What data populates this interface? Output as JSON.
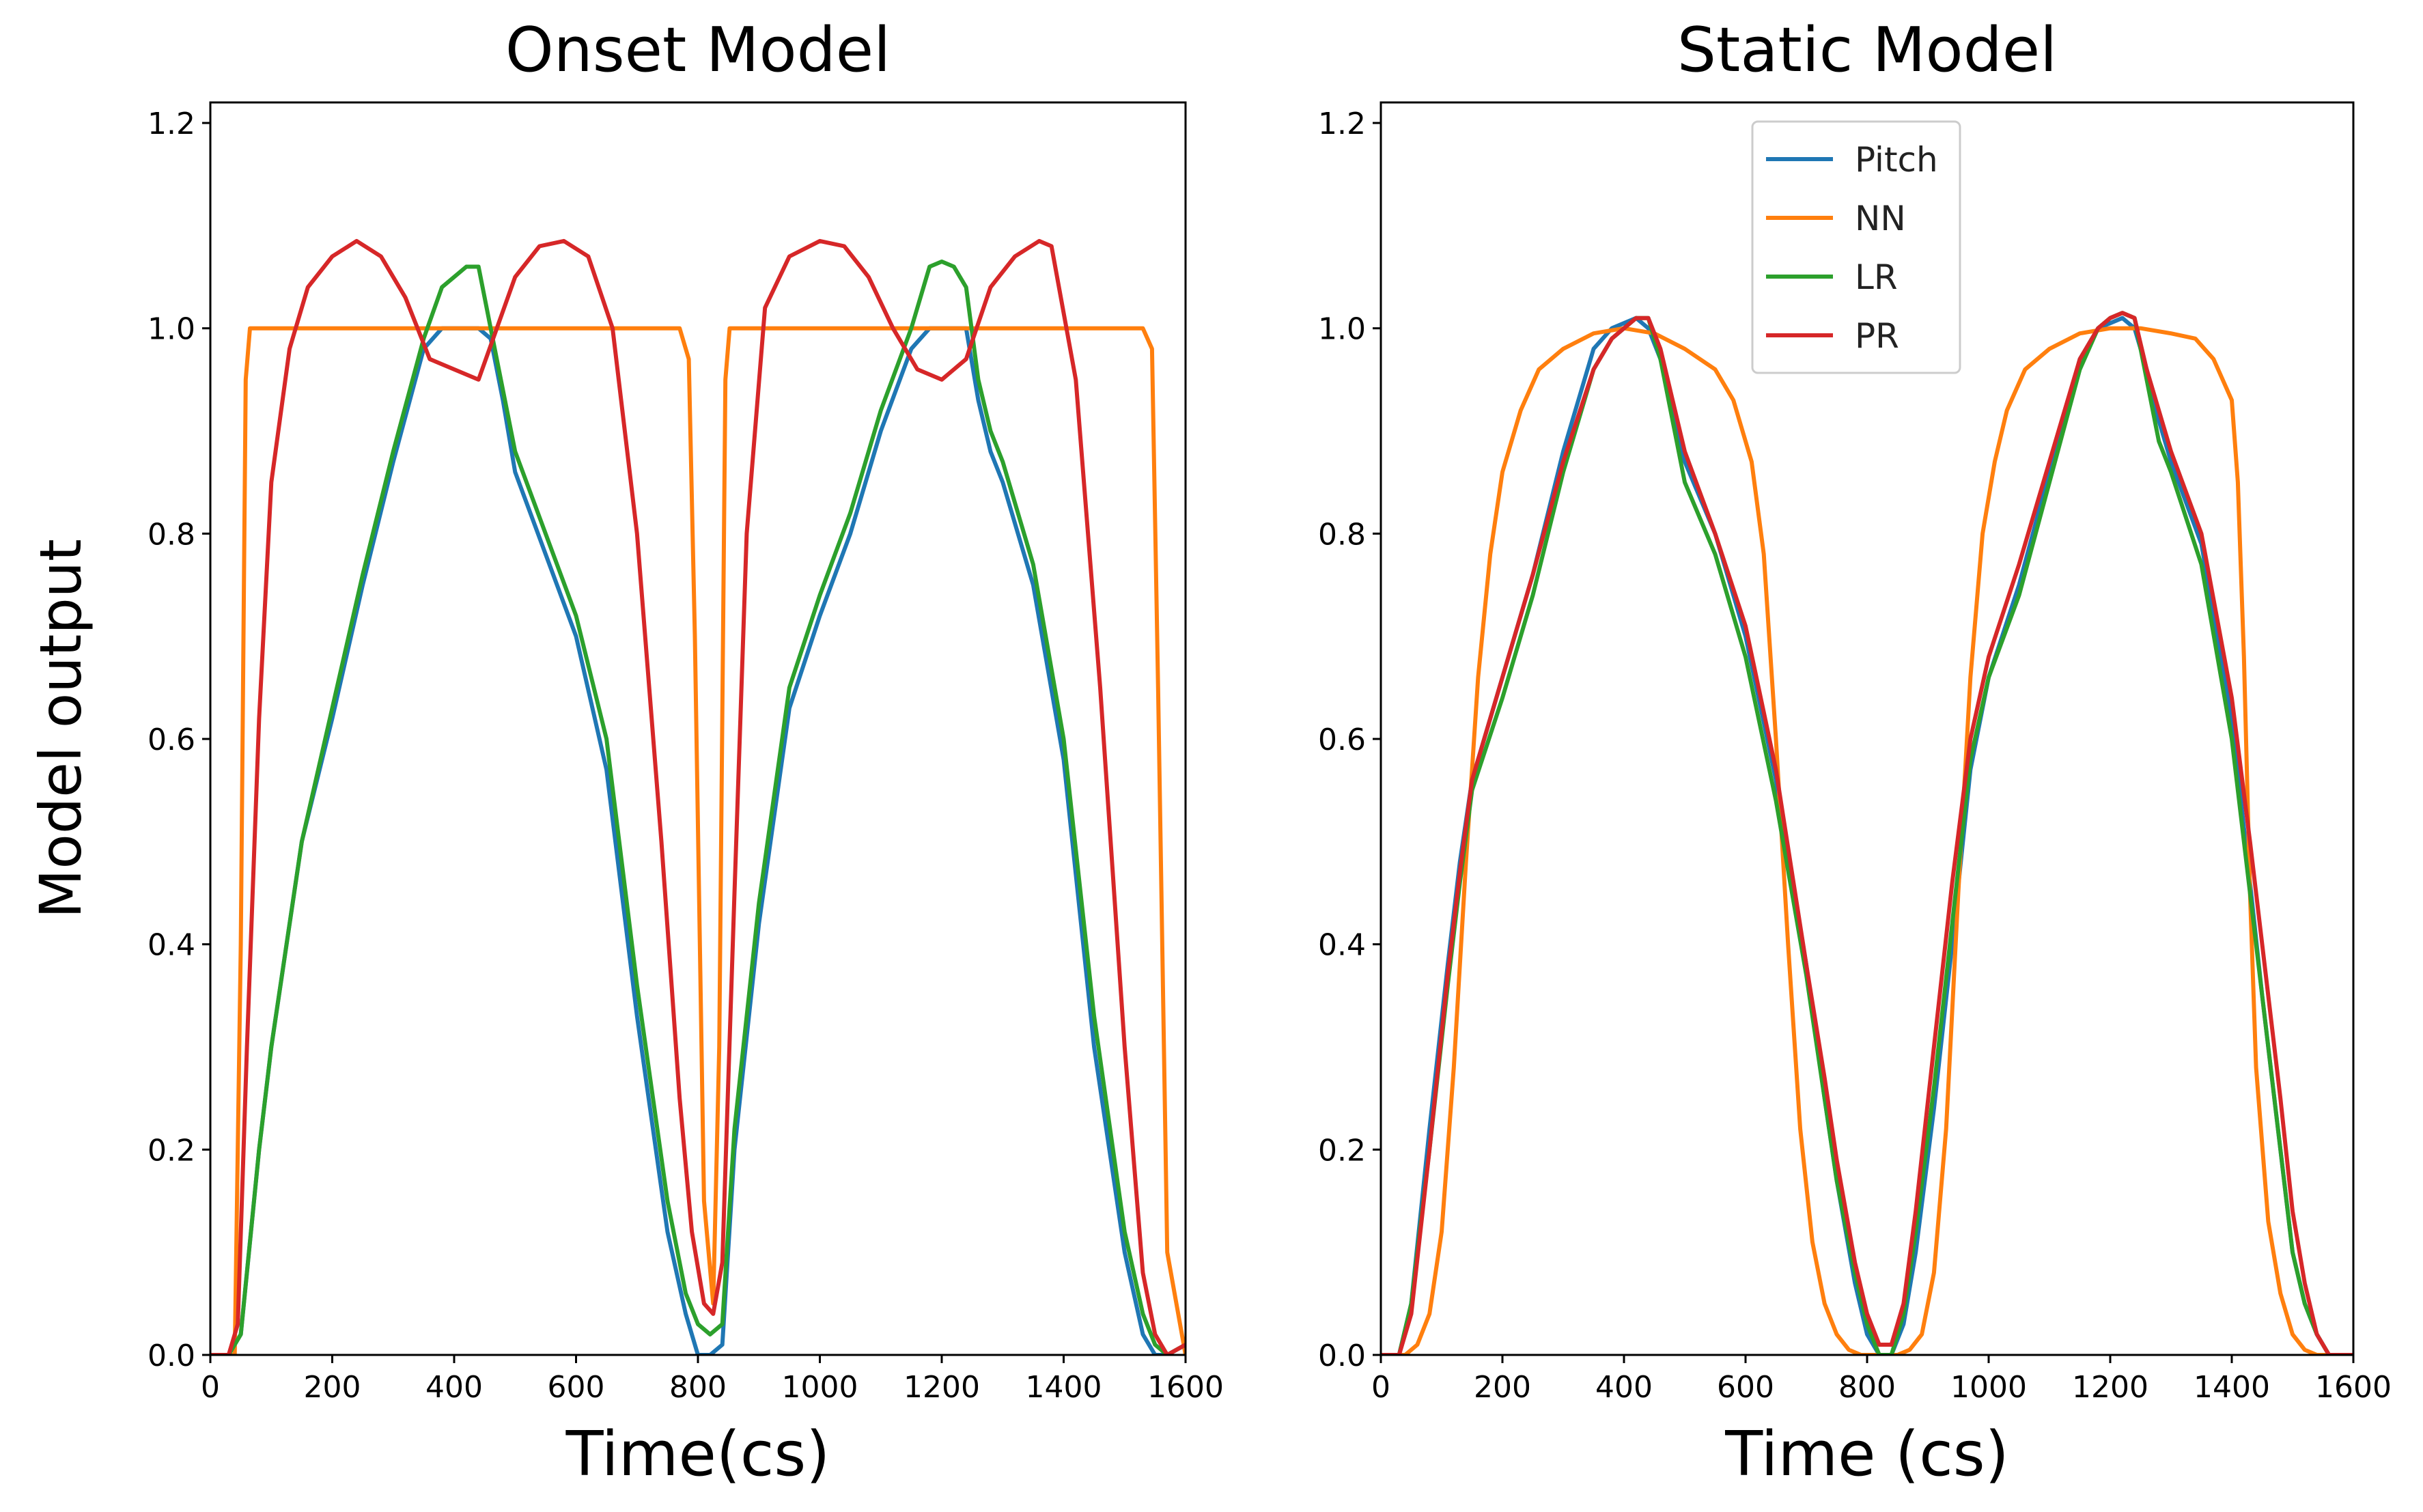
{
  "chart_data": [
    {
      "type": "line",
      "title": "Onset Model",
      "xlabel": "Time(cs)",
      "ylabel": "Model output",
      "xlim": [
        0,
        1600
      ],
      "ylim": [
        0,
        1.22
      ],
      "xticks": [
        0,
        200,
        400,
        600,
        800,
        1000,
        1200,
        1400,
        1600
      ],
      "xtick_labels": [
        "0",
        "200",
        "400",
        "600",
        "800",
        "1000",
        "1200",
        "1400",
        "1600"
      ],
      "yticks": [
        0.0,
        0.2,
        0.4,
        0.6,
        0.8,
        1.0,
        1.2
      ],
      "ytick_labels": [
        "0.0",
        "0.2",
        "0.4",
        "0.6",
        "0.8",
        "1.0",
        "1.2"
      ],
      "series": [
        {
          "name": "Pitch",
          "color": "#1f77b4",
          "x": [
            0,
            30,
            50,
            80,
            100,
            150,
            200,
            250,
            300,
            350,
            380,
            400,
            420,
            440,
            460,
            480,
            500,
            550,
            600,
            650,
            700,
            750,
            780,
            800,
            820,
            840,
            860,
            900,
            950,
            1000,
            1050,
            1100,
            1150,
            1180,
            1200,
            1220,
            1240,
            1260,
            1280,
            1300,
            1350,
            1400,
            1450,
            1500,
            1530,
            1550,
            1570,
            1600
          ],
          "y": [
            0,
            0,
            0.02,
            0.2,
            0.3,
            0.5,
            0.62,
            0.75,
            0.87,
            0.98,
            1.0,
            1.0,
            1.0,
            1.0,
            0.99,
            0.93,
            0.86,
            0.78,
            0.7,
            0.57,
            0.33,
            0.12,
            0.04,
            0.0,
            0.0,
            0.01,
            0.2,
            0.42,
            0.63,
            0.72,
            0.8,
            0.9,
            0.98,
            1.0,
            1.0,
            1.0,
            1.0,
            0.93,
            0.88,
            0.85,
            0.75,
            0.58,
            0.3,
            0.1,
            0.02,
            0.0,
            0.0,
            0.01
          ]
        },
        {
          "name": "NN",
          "color": "#ff7f0e",
          "x": [
            0,
            40,
            50,
            58,
            65,
            100,
            200,
            400,
            600,
            700,
            770,
            785,
            795,
            810,
            825,
            835,
            845,
            852,
            870,
            1000,
            1200,
            1400,
            1500,
            1530,
            1545,
            1555,
            1570,
            1600
          ],
          "y": [
            0,
            0,
            0.4,
            0.95,
            1.0,
            1.0,
            1.0,
            1.0,
            1.0,
            1.0,
            1.0,
            0.97,
            0.7,
            0.15,
            0.05,
            0.3,
            0.95,
            1.0,
            1.0,
            1.0,
            1.0,
            1.0,
            1.0,
            1.0,
            0.98,
            0.65,
            0.1,
            0.0
          ]
        },
        {
          "name": "LR",
          "color": "#2ca02c",
          "x": [
            0,
            30,
            50,
            80,
            100,
            150,
            200,
            250,
            300,
            350,
            380,
            400,
            420,
            440,
            460,
            480,
            500,
            550,
            600,
            650,
            700,
            750,
            780,
            800,
            820,
            840,
            860,
            900,
            950,
            1000,
            1050,
            1100,
            1150,
            1180,
            1200,
            1220,
            1240,
            1260,
            1280,
            1300,
            1350,
            1400,
            1450,
            1500,
            1530,
            1550,
            1570,
            1600
          ],
          "y": [
            0,
            0,
            0.02,
            0.2,
            0.3,
            0.5,
            0.63,
            0.76,
            0.88,
            0.99,
            1.04,
            1.05,
            1.06,
            1.06,
            1.0,
            0.94,
            0.88,
            0.8,
            0.72,
            0.6,
            0.36,
            0.15,
            0.06,
            0.03,
            0.02,
            0.03,
            0.22,
            0.44,
            0.65,
            0.74,
            0.82,
            0.92,
            1.0,
            1.06,
            1.065,
            1.06,
            1.04,
            0.95,
            0.9,
            0.87,
            0.77,
            0.6,
            0.33,
            0.12,
            0.04,
            0.01,
            0.0,
            0.01
          ]
        },
        {
          "name": "PR",
          "color": "#d62728",
          "x": [
            0,
            30,
            45,
            60,
            80,
            100,
            130,
            160,
            200,
            240,
            280,
            320,
            360,
            400,
            440,
            470,
            500,
            540,
            580,
            620,
            660,
            700,
            740,
            770,
            790,
            810,
            825,
            840,
            860,
            880,
            910,
            950,
            1000,
            1040,
            1080,
            1120,
            1160,
            1200,
            1240,
            1280,
            1320,
            1360,
            1380,
            1420,
            1460,
            1500,
            1530,
            1550,
            1570,
            1600
          ],
          "y": [
            0,
            0,
            0.03,
            0.3,
            0.62,
            0.85,
            0.98,
            1.04,
            1.07,
            1.085,
            1.07,
            1.03,
            0.97,
            0.96,
            0.95,
            1.0,
            1.05,
            1.08,
            1.085,
            1.07,
            1.0,
            0.8,
            0.5,
            0.25,
            0.12,
            0.05,
            0.04,
            0.09,
            0.45,
            0.8,
            1.02,
            1.07,
            1.085,
            1.08,
            1.05,
            1.0,
            0.96,
            0.95,
            0.97,
            1.04,
            1.07,
            1.085,
            1.08,
            0.95,
            0.65,
            0.3,
            0.08,
            0.02,
            0.0,
            0.01
          ]
        }
      ]
    },
    {
      "type": "line",
      "title": "Static Model",
      "xlabel": "Time (cs)",
      "ylabel": "",
      "xlim": [
        0,
        1600
      ],
      "ylim": [
        0,
        1.22
      ],
      "xticks": [
        0,
        200,
        400,
        600,
        800,
        1000,
        1200,
        1400,
        1600
      ],
      "xtick_labels": [
        "0",
        "200",
        "400",
        "600",
        "800",
        "1000",
        "1200",
        "1400",
        "1600"
      ],
      "yticks": [
        0.0,
        0.2,
        0.4,
        0.6,
        0.8,
        1.0,
        1.2
      ],
      "ytick_labels": [
        "0.0",
        "0.2",
        "0.4",
        "0.6",
        "0.8",
        "1.0",
        "1.2"
      ],
      "legend": "top-center",
      "series": [
        {
          "name": "Pitch",
          "color": "#1f77b4",
          "x": [
            0,
            30,
            50,
            80,
            110,
            130,
            150,
            200,
            250,
            300,
            350,
            380,
            400,
            420,
            440,
            460,
            480,
            500,
            550,
            600,
            650,
            700,
            730,
            750,
            780,
            800,
            820,
            840,
            860,
            880,
            910,
            940,
            970,
            1000,
            1050,
            1100,
            1150,
            1180,
            1200,
            1220,
            1240,
            1260,
            1280,
            1300,
            1350,
            1400,
            1430,
            1450,
            1480,
            1500,
            1520,
            1540,
            1560,
            1600
          ],
          "y": [
            0,
            0,
            0.05,
            0.22,
            0.38,
            0.48,
            0.56,
            0.66,
            0.76,
            0.88,
            0.98,
            1.0,
            1.005,
            1.01,
            1.0,
            0.97,
            0.92,
            0.87,
            0.8,
            0.7,
            0.56,
            0.38,
            0.25,
            0.17,
            0.07,
            0.02,
            0.0,
            0.0,
            0.03,
            0.1,
            0.24,
            0.4,
            0.57,
            0.66,
            0.75,
            0.86,
            0.97,
            1.0,
            1.005,
            1.01,
            1.0,
            0.96,
            0.91,
            0.87,
            0.79,
            0.62,
            0.46,
            0.35,
            0.2,
            0.1,
            0.05,
            0.02,
            0.0,
            0.0
          ]
        },
        {
          "name": "NN",
          "color": "#ff7f0e",
          "x": [
            0,
            40,
            60,
            80,
            100,
            120,
            140,
            160,
            180,
            200,
            230,
            260,
            300,
            350,
            400,
            450,
            500,
            550,
            580,
            610,
            630,
            650,
            670,
            690,
            710,
            730,
            750,
            770,
            790,
            810,
            830,
            850,
            870,
            890,
            910,
            930,
            950,
            970,
            990,
            1010,
            1030,
            1060,
            1100,
            1150,
            1200,
            1250,
            1300,
            1340,
            1370,
            1400,
            1410,
            1420,
            1430,
            1440,
            1460,
            1480,
            1500,
            1520,
            1540,
            1600
          ],
          "y": [
            0,
            0,
            0.01,
            0.04,
            0.12,
            0.28,
            0.48,
            0.66,
            0.78,
            0.86,
            0.92,
            0.96,
            0.98,
            0.995,
            1.0,
            0.995,
            0.98,
            0.96,
            0.93,
            0.87,
            0.78,
            0.6,
            0.4,
            0.22,
            0.11,
            0.05,
            0.02,
            0.005,
            0.0,
            0.0,
            0.0,
            0.0,
            0.005,
            0.02,
            0.08,
            0.22,
            0.45,
            0.66,
            0.8,
            0.87,
            0.92,
            0.96,
            0.98,
            0.995,
            1.0,
            1.0,
            0.995,
            0.99,
            0.97,
            0.93,
            0.85,
            0.68,
            0.45,
            0.28,
            0.13,
            0.06,
            0.02,
            0.005,
            0.0,
            0.0
          ]
        },
        {
          "name": "LR",
          "color": "#2ca02c",
          "x": [
            0,
            30,
            50,
            80,
            110,
            130,
            150,
            200,
            250,
            300,
            350,
            380,
            400,
            420,
            440,
            460,
            480,
            500,
            550,
            600,
            650,
            700,
            730,
            750,
            780,
            800,
            820,
            840,
            860,
            880,
            910,
            940,
            970,
            1000,
            1050,
            1100,
            1150,
            1180,
            1200,
            1220,
            1240,
            1260,
            1280,
            1300,
            1350,
            1400,
            1430,
            1450,
            1480,
            1500,
            1520,
            1540,
            1560,
            1600
          ],
          "y": [
            0,
            0,
            0.05,
            0.2,
            0.36,
            0.46,
            0.55,
            0.64,
            0.74,
            0.86,
            0.96,
            0.99,
            1.0,
            1.01,
            1.01,
            0.97,
            0.91,
            0.85,
            0.78,
            0.68,
            0.54,
            0.37,
            0.25,
            0.17,
            0.08,
            0.03,
            0.0,
            0.0,
            0.04,
            0.12,
            0.26,
            0.42,
            0.58,
            0.66,
            0.74,
            0.85,
            0.96,
            1.0,
            1.01,
            1.015,
            1.01,
            0.95,
            0.89,
            0.86,
            0.77,
            0.6,
            0.45,
            0.35,
            0.2,
            0.1,
            0.05,
            0.02,
            0.0,
            0.0
          ]
        },
        {
          "name": "PR",
          "color": "#d62728",
          "x": [
            0,
            30,
            50,
            80,
            110,
            130,
            150,
            200,
            250,
            300,
            350,
            380,
            400,
            420,
            440,
            460,
            480,
            500,
            550,
            600,
            650,
            700,
            730,
            750,
            780,
            800,
            820,
            840,
            860,
            880,
            910,
            940,
            970,
            1000,
            1050,
            1100,
            1150,
            1180,
            1200,
            1220,
            1240,
            1260,
            1280,
            1300,
            1350,
            1400,
            1430,
            1450,
            1480,
            1500,
            1520,
            1540,
            1560,
            1600
          ],
          "y": [
            0,
            0,
            0.04,
            0.2,
            0.37,
            0.47,
            0.56,
            0.66,
            0.76,
            0.87,
            0.96,
            0.99,
            1.0,
            1.01,
            1.01,
            0.98,
            0.93,
            0.88,
            0.8,
            0.71,
            0.57,
            0.38,
            0.27,
            0.19,
            0.09,
            0.04,
            0.01,
            0.01,
            0.05,
            0.14,
            0.3,
            0.46,
            0.6,
            0.68,
            0.77,
            0.87,
            0.97,
            1.0,
            1.01,
            1.015,
            1.01,
            0.96,
            0.92,
            0.88,
            0.8,
            0.64,
            0.5,
            0.4,
            0.25,
            0.14,
            0.07,
            0.02,
            0.0,
            0.0
          ]
        }
      ]
    }
  ]
}
